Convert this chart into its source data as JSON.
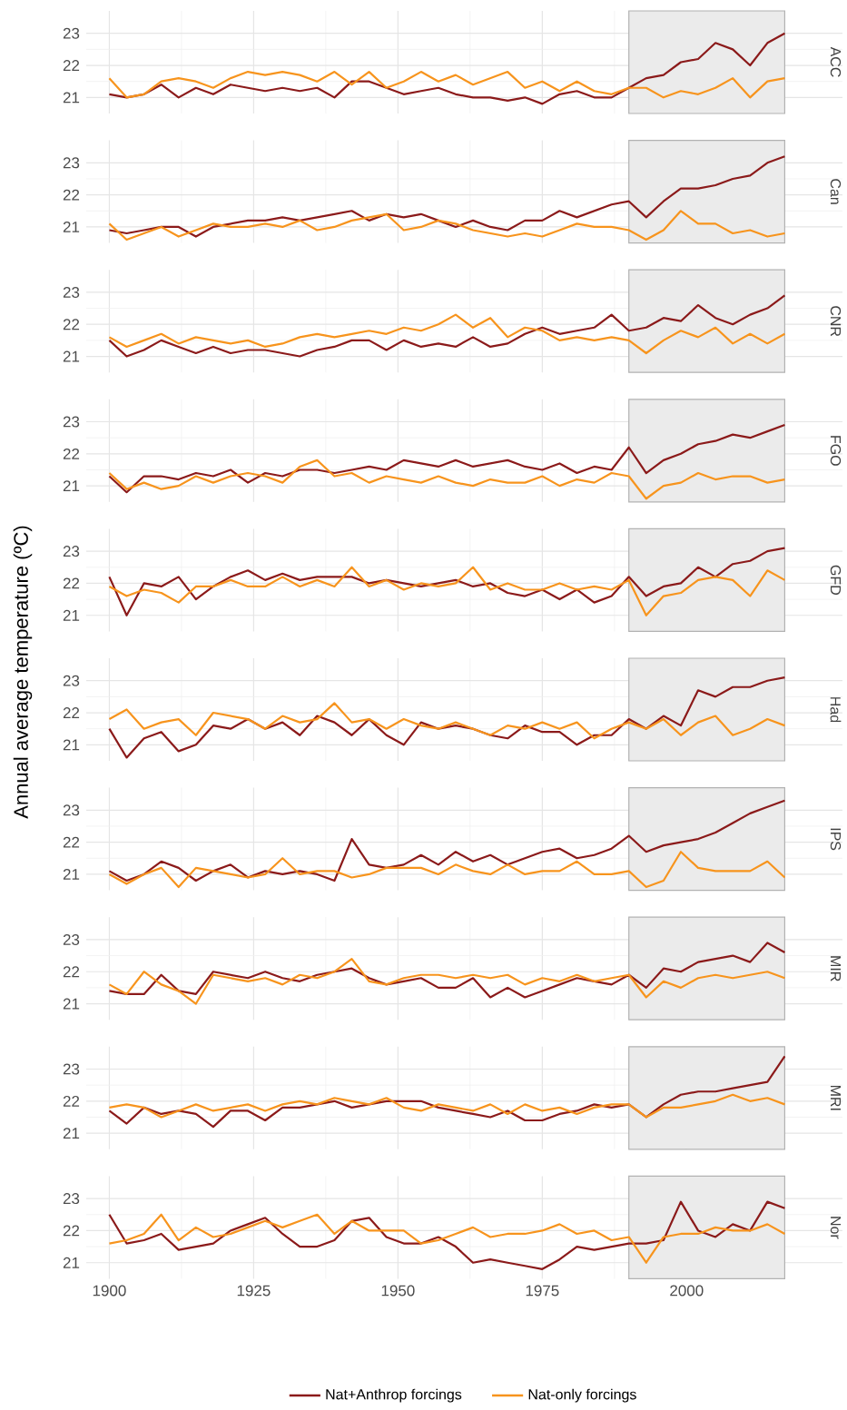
{
  "chart_data": [
    {
      "type": "line",
      "title": "ACC",
      "x": [
        1900,
        1903,
        1906,
        1909,
        1912,
        1915,
        1918,
        1921,
        1924,
        1927,
        1930,
        1933,
        1936,
        1939,
        1942,
        1945,
        1948,
        1951,
        1954,
        1957,
        1960,
        1963,
        1966,
        1969,
        1972,
        1975,
        1978,
        1981,
        1984,
        1987,
        1990,
        1993,
        1996,
        1999,
        2002,
        2005,
        2008,
        2011,
        2014,
        2017
      ],
      "xlim": [
        1896,
        2027
      ],
      "ylim": [
        20.5,
        23.7
      ],
      "xticks": [
        1900,
        1925,
        1950,
        1975,
        2000
      ],
      "yticks": [
        21,
        22,
        23
      ],
      "grid": true,
      "tick_labels": "y",
      "marker": "none",
      "bands": [
        {
          "axis": "x",
          "from": 1990,
          "to": 2017,
          "color": "#ebebeb"
        }
      ],
      "series": [
        {
          "color": "#8b1a1a",
          "values": [
            21.1,
            21.0,
            21.1,
            21.4,
            21.0,
            21.3,
            21.1,
            21.4,
            21.3,
            21.2,
            21.3,
            21.2,
            21.3,
            21.0,
            21.5,
            21.5,
            21.3,
            21.1,
            21.2,
            21.3,
            21.1,
            21.0,
            21.0,
            20.9,
            21.0,
            20.8,
            21.1,
            21.2,
            21.0,
            21.0,
            21.3,
            21.6,
            21.7,
            22.1,
            22.2,
            22.7,
            22.5,
            22.0,
            22.7,
            23.0
          ]
        },
        {
          "color": "#f7941d",
          "values": [
            21.6,
            21.0,
            21.1,
            21.5,
            21.6,
            21.5,
            21.3,
            21.6,
            21.8,
            21.7,
            21.8,
            21.7,
            21.5,
            21.8,
            21.4,
            21.8,
            21.3,
            21.5,
            21.8,
            21.5,
            21.7,
            21.4,
            21.6,
            21.8,
            21.3,
            21.5,
            21.2,
            21.5,
            21.2,
            21.1,
            21.3,
            21.3,
            21.0,
            21.2,
            21.1,
            21.3,
            21.6,
            21.0,
            21.5,
            21.6
          ]
        }
      ]
    },
    {
      "type": "line",
      "title": "Can",
      "x": [
        1900,
        1903,
        1906,
        1909,
        1912,
        1915,
        1918,
        1921,
        1924,
        1927,
        1930,
        1933,
        1936,
        1939,
        1942,
        1945,
        1948,
        1951,
        1954,
        1957,
        1960,
        1963,
        1966,
        1969,
        1972,
        1975,
        1978,
        1981,
        1984,
        1987,
        1990,
        1993,
        1996,
        1999,
        2002,
        2005,
        2008,
        2011,
        2014,
        2017
      ],
      "xlim": [
        1896,
        2027
      ],
      "ylim": [
        20.5,
        23.7
      ],
      "xticks": [
        1900,
        1925,
        1950,
        1975,
        2000
      ],
      "yticks": [
        21,
        22,
        23
      ],
      "grid": true,
      "tick_labels": "y",
      "marker": "none",
      "bands": [
        {
          "axis": "x",
          "from": 1990,
          "to": 2017,
          "color": "#ebebeb"
        }
      ],
      "series": [
        {
          "color": "#8b1a1a",
          "values": [
            20.9,
            20.8,
            20.9,
            21.0,
            21.0,
            20.7,
            21.0,
            21.1,
            21.2,
            21.2,
            21.3,
            21.2,
            21.3,
            21.4,
            21.5,
            21.2,
            21.4,
            21.3,
            21.4,
            21.2,
            21.0,
            21.2,
            21.0,
            20.9,
            21.2,
            21.2,
            21.5,
            21.3,
            21.5,
            21.7,
            21.8,
            21.3,
            21.8,
            22.2,
            22.2,
            22.3,
            22.5,
            22.6,
            23.0,
            23.2
          ]
        },
        {
          "color": "#f7941d",
          "values": [
            21.1,
            20.6,
            20.8,
            21.0,
            20.7,
            20.9,
            21.1,
            21.0,
            21.0,
            21.1,
            21.0,
            21.2,
            20.9,
            21.0,
            21.2,
            21.3,
            21.4,
            20.9,
            21.0,
            21.2,
            21.1,
            20.9,
            20.8,
            20.7,
            20.8,
            20.7,
            20.9,
            21.1,
            21.0,
            21.0,
            20.9,
            20.6,
            20.9,
            21.5,
            21.1,
            21.1,
            20.8,
            20.9,
            20.7,
            20.8
          ]
        }
      ]
    },
    {
      "type": "line",
      "title": "CNR",
      "x": [
        1900,
        1903,
        1906,
        1909,
        1912,
        1915,
        1918,
        1921,
        1924,
        1927,
        1930,
        1933,
        1936,
        1939,
        1942,
        1945,
        1948,
        1951,
        1954,
        1957,
        1960,
        1963,
        1966,
        1969,
        1972,
        1975,
        1978,
        1981,
        1984,
        1987,
        1990,
        1993,
        1996,
        1999,
        2002,
        2005,
        2008,
        2011,
        2014,
        2017
      ],
      "xlim": [
        1896,
        2027
      ],
      "ylim": [
        20.5,
        23.7
      ],
      "xticks": [
        1900,
        1925,
        1950,
        1975,
        2000
      ],
      "yticks": [
        21,
        22,
        23
      ],
      "grid": true,
      "tick_labels": "y",
      "marker": "none",
      "bands": [
        {
          "axis": "x",
          "from": 1990,
          "to": 2017,
          "color": "#ebebeb"
        }
      ],
      "series": [
        {
          "color": "#8b1a1a",
          "values": [
            21.5,
            21.0,
            21.2,
            21.5,
            21.3,
            21.1,
            21.3,
            21.1,
            21.2,
            21.2,
            21.1,
            21.0,
            21.2,
            21.3,
            21.5,
            21.5,
            21.2,
            21.5,
            21.3,
            21.4,
            21.3,
            21.6,
            21.3,
            21.4,
            21.7,
            21.9,
            21.7,
            21.8,
            21.9,
            22.3,
            21.8,
            21.9,
            22.2,
            22.1,
            22.6,
            22.2,
            22.0,
            22.3,
            22.5,
            22.9
          ]
        },
        {
          "color": "#f7941d",
          "values": [
            21.6,
            21.3,
            21.5,
            21.7,
            21.4,
            21.6,
            21.5,
            21.4,
            21.5,
            21.3,
            21.4,
            21.6,
            21.7,
            21.6,
            21.7,
            21.8,
            21.7,
            21.9,
            21.8,
            22.0,
            22.3,
            21.9,
            22.2,
            21.6,
            21.9,
            21.8,
            21.5,
            21.6,
            21.5,
            21.6,
            21.5,
            21.1,
            21.5,
            21.8,
            21.6,
            21.9,
            21.4,
            21.7,
            21.4,
            21.7
          ]
        }
      ]
    },
    {
      "type": "line",
      "title": "FGO",
      "x": [
        1900,
        1903,
        1906,
        1909,
        1912,
        1915,
        1918,
        1921,
        1924,
        1927,
        1930,
        1933,
        1936,
        1939,
        1942,
        1945,
        1948,
        1951,
        1954,
        1957,
        1960,
        1963,
        1966,
        1969,
        1972,
        1975,
        1978,
        1981,
        1984,
        1987,
        1990,
        1993,
        1996,
        1999,
        2002,
        2005,
        2008,
        2011,
        2014,
        2017
      ],
      "xlim": [
        1896,
        2027
      ],
      "ylim": [
        20.5,
        23.7
      ],
      "xticks": [
        1900,
        1925,
        1950,
        1975,
        2000
      ],
      "yticks": [
        21,
        22,
        23
      ],
      "grid": true,
      "tick_labels": "y",
      "marker": "none",
      "bands": [
        {
          "axis": "x",
          "from": 1990,
          "to": 2017,
          "color": "#ebebeb"
        }
      ],
      "series": [
        {
          "color": "#8b1a1a",
          "values": [
            21.3,
            20.8,
            21.3,
            21.3,
            21.2,
            21.4,
            21.3,
            21.5,
            21.1,
            21.4,
            21.3,
            21.5,
            21.5,
            21.4,
            21.5,
            21.6,
            21.5,
            21.8,
            21.7,
            21.6,
            21.8,
            21.6,
            21.7,
            21.8,
            21.6,
            21.5,
            21.7,
            21.4,
            21.6,
            21.5,
            22.2,
            21.4,
            21.8,
            22.0,
            22.3,
            22.4,
            22.6,
            22.5,
            22.7,
            22.9
          ]
        },
        {
          "color": "#f7941d",
          "values": [
            21.4,
            20.9,
            21.1,
            20.9,
            21.0,
            21.3,
            21.1,
            21.3,
            21.4,
            21.3,
            21.1,
            21.6,
            21.8,
            21.3,
            21.4,
            21.1,
            21.3,
            21.2,
            21.1,
            21.3,
            21.1,
            21.0,
            21.2,
            21.1,
            21.1,
            21.3,
            21.0,
            21.2,
            21.1,
            21.4,
            21.3,
            20.6,
            21.0,
            21.1,
            21.4,
            21.2,
            21.3,
            21.3,
            21.1,
            21.2
          ]
        }
      ]
    },
    {
      "type": "line",
      "title": "GFD",
      "x": [
        1900,
        1903,
        1906,
        1909,
        1912,
        1915,
        1918,
        1921,
        1924,
        1927,
        1930,
        1933,
        1936,
        1939,
        1942,
        1945,
        1948,
        1951,
        1954,
        1957,
        1960,
        1963,
        1966,
        1969,
        1972,
        1975,
        1978,
        1981,
        1984,
        1987,
        1990,
        1993,
        1996,
        1999,
        2002,
        2005,
        2008,
        2011,
        2014,
        2017
      ],
      "xlim": [
        1896,
        2027
      ],
      "ylim": [
        20.5,
        23.7
      ],
      "xticks": [
        1900,
        1925,
        1950,
        1975,
        2000
      ],
      "yticks": [
        21,
        22,
        23
      ],
      "grid": true,
      "tick_labels": "y",
      "marker": "none",
      "bands": [
        {
          "axis": "x",
          "from": 1990,
          "to": 2017,
          "color": "#ebebeb"
        }
      ],
      "series": [
        {
          "color": "#8b1a1a",
          "values": [
            22.2,
            21.0,
            22.0,
            21.9,
            22.2,
            21.5,
            21.9,
            22.2,
            22.4,
            22.1,
            22.3,
            22.1,
            22.2,
            22.2,
            22.2,
            22.0,
            22.1,
            22.0,
            21.9,
            22.0,
            22.1,
            21.9,
            22.0,
            21.7,
            21.6,
            21.8,
            21.5,
            21.8,
            21.4,
            21.6,
            22.2,
            21.6,
            21.9,
            22.0,
            22.5,
            22.2,
            22.6,
            22.7,
            23.0,
            23.1
          ]
        },
        {
          "color": "#f7941d",
          "values": [
            21.9,
            21.6,
            21.8,
            21.7,
            21.4,
            21.9,
            21.9,
            22.1,
            21.9,
            21.9,
            22.2,
            21.9,
            22.1,
            21.9,
            22.5,
            21.9,
            22.1,
            21.8,
            22.0,
            21.9,
            22.0,
            22.5,
            21.8,
            22.0,
            21.8,
            21.8,
            22.0,
            21.8,
            21.9,
            21.8,
            22.1,
            21.0,
            21.6,
            21.7,
            22.1,
            22.2,
            22.1,
            21.6,
            22.4,
            22.1
          ]
        }
      ]
    },
    {
      "type": "line",
      "title": "Had",
      "ylabel": "Annual average temperature (ºC)",
      "x": [
        1900,
        1903,
        1906,
        1909,
        1912,
        1915,
        1918,
        1921,
        1924,
        1927,
        1930,
        1933,
        1936,
        1939,
        1942,
        1945,
        1948,
        1951,
        1954,
        1957,
        1960,
        1963,
        1966,
        1969,
        1972,
        1975,
        1978,
        1981,
        1984,
        1987,
        1990,
        1993,
        1996,
        1999,
        2002,
        2005,
        2008,
        2011,
        2014,
        2017
      ],
      "xlim": [
        1896,
        2027
      ],
      "ylim": [
        20.5,
        23.7
      ],
      "xticks": [
        1900,
        1925,
        1950,
        1975,
        2000
      ],
      "yticks": [
        21,
        22,
        23
      ],
      "grid": true,
      "tick_labels": "y",
      "marker": "none",
      "bands": [
        {
          "axis": "x",
          "from": 1990,
          "to": 2017,
          "color": "#ebebeb"
        }
      ],
      "series": [
        {
          "color": "#8b1a1a",
          "values": [
            21.5,
            20.6,
            21.2,
            21.4,
            20.8,
            21.0,
            21.6,
            21.5,
            21.8,
            21.5,
            21.7,
            21.3,
            21.9,
            21.7,
            21.3,
            21.8,
            21.3,
            21.0,
            21.7,
            21.5,
            21.6,
            21.5,
            21.3,
            21.2,
            21.6,
            21.4,
            21.4,
            21.0,
            21.3,
            21.3,
            21.8,
            21.5,
            21.9,
            21.6,
            22.7,
            22.5,
            22.8,
            22.8,
            23.0,
            23.1
          ]
        },
        {
          "color": "#f7941d",
          "values": [
            21.8,
            22.1,
            21.5,
            21.7,
            21.8,
            21.3,
            22.0,
            21.9,
            21.8,
            21.5,
            21.9,
            21.7,
            21.8,
            22.3,
            21.7,
            21.8,
            21.5,
            21.8,
            21.6,
            21.5,
            21.7,
            21.5,
            21.3,
            21.6,
            21.5,
            21.7,
            21.5,
            21.7,
            21.2,
            21.5,
            21.7,
            21.5,
            21.8,
            21.3,
            21.7,
            21.9,
            21.3,
            21.5,
            21.8,
            21.6
          ]
        }
      ]
    },
    {
      "type": "line",
      "title": "IPS",
      "x": [
        1900,
        1903,
        1906,
        1909,
        1912,
        1915,
        1918,
        1921,
        1924,
        1927,
        1930,
        1933,
        1936,
        1939,
        1942,
        1945,
        1948,
        1951,
        1954,
        1957,
        1960,
        1963,
        1966,
        1969,
        1972,
        1975,
        1978,
        1981,
        1984,
        1987,
        1990,
        1993,
        1996,
        1999,
        2002,
        2005,
        2008,
        2011,
        2014,
        2017
      ],
      "xlim": [
        1896,
        2027
      ],
      "ylim": [
        20.5,
        23.7
      ],
      "xticks": [
        1900,
        1925,
        1950,
        1975,
        2000
      ],
      "yticks": [
        21,
        22,
        23
      ],
      "grid": true,
      "tick_labels": "y",
      "marker": "none",
      "bands": [
        {
          "axis": "x",
          "from": 1990,
          "to": 2017,
          "color": "#ebebeb"
        }
      ],
      "series": [
        {
          "color": "#8b1a1a",
          "values": [
            21.1,
            20.8,
            21.0,
            21.4,
            21.2,
            20.8,
            21.1,
            21.3,
            20.9,
            21.1,
            21.0,
            21.1,
            21.0,
            20.8,
            22.1,
            21.3,
            21.2,
            21.3,
            21.6,
            21.3,
            21.7,
            21.4,
            21.6,
            21.3,
            21.5,
            21.7,
            21.8,
            21.5,
            21.6,
            21.8,
            22.2,
            21.7,
            21.9,
            22.0,
            22.1,
            22.3,
            22.6,
            22.9,
            23.1,
            23.3
          ]
        },
        {
          "color": "#f7941d",
          "values": [
            21.0,
            20.7,
            21.0,
            21.2,
            20.6,
            21.2,
            21.1,
            21.0,
            20.9,
            21.0,
            21.5,
            21.0,
            21.1,
            21.1,
            20.9,
            21.0,
            21.2,
            21.2,
            21.2,
            21.0,
            21.3,
            21.1,
            21.0,
            21.3,
            21.0,
            21.1,
            21.1,
            21.4,
            21.0,
            21.0,
            21.1,
            20.6,
            20.8,
            21.7,
            21.2,
            21.1,
            21.1,
            21.1,
            21.4,
            20.9
          ]
        }
      ]
    },
    {
      "type": "line",
      "title": "MIR",
      "x": [
        1900,
        1903,
        1906,
        1909,
        1912,
        1915,
        1918,
        1921,
        1924,
        1927,
        1930,
        1933,
        1936,
        1939,
        1942,
        1945,
        1948,
        1951,
        1954,
        1957,
        1960,
        1963,
        1966,
        1969,
        1972,
        1975,
        1978,
        1981,
        1984,
        1987,
        1990,
        1993,
        1996,
        1999,
        2002,
        2005,
        2008,
        2011,
        2014,
        2017
      ],
      "xlim": [
        1896,
        2027
      ],
      "ylim": [
        20.5,
        23.7
      ],
      "xticks": [
        1900,
        1925,
        1950,
        1975,
        2000
      ],
      "yticks": [
        21,
        22,
        23
      ],
      "grid": true,
      "tick_labels": "y",
      "marker": "none",
      "bands": [
        {
          "axis": "x",
          "from": 1990,
          "to": 2017,
          "color": "#ebebeb"
        }
      ],
      "series": [
        {
          "color": "#8b1a1a",
          "values": [
            21.4,
            21.3,
            21.3,
            21.9,
            21.4,
            21.3,
            22.0,
            21.9,
            21.8,
            22.0,
            21.8,
            21.7,
            21.9,
            22.0,
            22.1,
            21.8,
            21.6,
            21.7,
            21.8,
            21.5,
            21.5,
            21.8,
            21.2,
            21.5,
            21.2,
            21.4,
            21.6,
            21.8,
            21.7,
            21.6,
            21.9,
            21.5,
            22.1,
            22.0,
            22.3,
            22.4,
            22.5,
            22.3,
            22.9,
            22.6
          ]
        },
        {
          "color": "#f7941d",
          "values": [
            21.6,
            21.3,
            22.0,
            21.6,
            21.4,
            21.0,
            21.9,
            21.8,
            21.7,
            21.8,
            21.6,
            21.9,
            21.8,
            22.0,
            22.4,
            21.7,
            21.6,
            21.8,
            21.9,
            21.9,
            21.8,
            21.9,
            21.8,
            21.9,
            21.6,
            21.8,
            21.7,
            21.9,
            21.7,
            21.8,
            21.9,
            21.2,
            21.7,
            21.5,
            21.8,
            21.9,
            21.8,
            21.9,
            22.0,
            21.8
          ]
        }
      ]
    },
    {
      "type": "line",
      "title": "MRI",
      "x": [
        1900,
        1903,
        1906,
        1909,
        1912,
        1915,
        1918,
        1921,
        1924,
        1927,
        1930,
        1933,
        1936,
        1939,
        1942,
        1945,
        1948,
        1951,
        1954,
        1957,
        1960,
        1963,
        1966,
        1969,
        1972,
        1975,
        1978,
        1981,
        1984,
        1987,
        1990,
        1993,
        1996,
        1999,
        2002,
        2005,
        2008,
        2011,
        2014,
        2017
      ],
      "xlim": [
        1896,
        2027
      ],
      "ylim": [
        20.5,
        23.7
      ],
      "xticks": [
        1900,
        1925,
        1950,
        1975,
        2000
      ],
      "yticks": [
        21,
        22,
        23
      ],
      "grid": true,
      "tick_labels": "y",
      "marker": "none",
      "bands": [
        {
          "axis": "x",
          "from": 1990,
          "to": 2017,
          "color": "#ebebeb"
        }
      ],
      "series": [
        {
          "color": "#8b1a1a",
          "values": [
            21.7,
            21.3,
            21.8,
            21.6,
            21.7,
            21.6,
            21.2,
            21.7,
            21.7,
            21.4,
            21.8,
            21.8,
            21.9,
            22.0,
            21.8,
            21.9,
            22.0,
            22.0,
            22.0,
            21.8,
            21.7,
            21.6,
            21.5,
            21.7,
            21.4,
            21.4,
            21.6,
            21.7,
            21.9,
            21.8,
            21.9,
            21.5,
            21.9,
            22.2,
            22.3,
            22.3,
            22.4,
            22.5,
            22.6,
            23.4
          ]
        },
        {
          "color": "#f7941d",
          "values": [
            21.8,
            21.9,
            21.8,
            21.5,
            21.7,
            21.9,
            21.7,
            21.8,
            21.9,
            21.7,
            21.9,
            22.0,
            21.9,
            22.1,
            22.0,
            21.9,
            22.1,
            21.8,
            21.7,
            21.9,
            21.8,
            21.7,
            21.9,
            21.6,
            21.9,
            21.7,
            21.8,
            21.6,
            21.8,
            21.9,
            21.9,
            21.5,
            21.8,
            21.8,
            21.9,
            22.0,
            22.2,
            22.0,
            22.1,
            21.9
          ]
        }
      ]
    },
    {
      "type": "line",
      "title": "Nor",
      "x": [
        1900,
        1903,
        1906,
        1909,
        1912,
        1915,
        1918,
        1921,
        1924,
        1927,
        1930,
        1933,
        1936,
        1939,
        1942,
        1945,
        1948,
        1951,
        1954,
        1957,
        1960,
        1963,
        1966,
        1969,
        1972,
        1975,
        1978,
        1981,
        1984,
        1987,
        1990,
        1993,
        1996,
        1999,
        2002,
        2005,
        2008,
        2011,
        2014,
        2017
      ],
      "xlim": [
        1896,
        2027
      ],
      "ylim": [
        20.5,
        23.7
      ],
      "xticks": [
        1900,
        1925,
        1950,
        1975,
        2000
      ],
      "yticks": [
        21,
        22,
        23
      ],
      "grid": true,
      "legend": "bottom",
      "marker": "none",
      "bands": [
        {
          "axis": "x",
          "from": 1990,
          "to": 2017,
          "color": "#ebebeb"
        }
      ],
      "series": [
        {
          "name": "Nat+Anthrop forcings",
          "color": "#8b1a1a",
          "values": [
            22.5,
            21.6,
            21.7,
            21.9,
            21.4,
            21.5,
            21.6,
            22.0,
            22.2,
            22.4,
            21.9,
            21.5,
            21.5,
            21.7,
            22.3,
            22.4,
            21.8,
            21.6,
            21.6,
            21.8,
            21.5,
            21.0,
            21.1,
            21.0,
            20.9,
            20.8,
            21.1,
            21.5,
            21.4,
            21.5,
            21.6,
            21.6,
            21.7,
            22.9,
            22.0,
            21.8,
            22.2,
            22.0,
            22.9,
            22.7
          ]
        },
        {
          "name": "Nat-only forcings",
          "color": "#f7941d",
          "values": [
            21.6,
            21.7,
            21.9,
            22.5,
            21.7,
            22.1,
            21.8,
            21.9,
            22.1,
            22.3,
            22.1,
            22.3,
            22.5,
            21.9,
            22.3,
            22.0,
            22.0,
            22.0,
            21.6,
            21.7,
            21.9,
            22.1,
            21.8,
            21.9,
            21.9,
            22.0,
            22.2,
            21.9,
            22.0,
            21.7,
            21.8,
            21.0,
            21.8,
            21.9,
            21.9,
            22.1,
            22.0,
            22.0,
            22.2,
            21.9
          ]
        }
      ]
    }
  ]
}
